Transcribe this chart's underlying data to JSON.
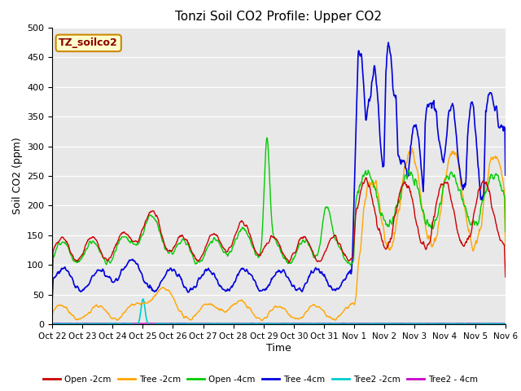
{
  "title": "Tonzi Soil CO2 Profile: Upper CO2",
  "ylabel": "Soil CO2 (ppm)",
  "xlabel": "Time",
  "ylim": [
    0,
    500
  ],
  "watermark": "TZ_soilco2",
  "bg_color": "#e8e8e8",
  "series": {
    "open_2cm": {
      "color": "#cc0000",
      "label": "Open -2cm"
    },
    "tree_2cm": {
      "color": "#ffa500",
      "label": "Tree -2cm"
    },
    "open_4cm": {
      "color": "#00cc00",
      "label": "Open -4cm"
    },
    "tree_4cm": {
      "color": "#0000dd",
      "label": "Tree -4cm"
    },
    "tree2_2cm": {
      "color": "#00cccc",
      "label": "Tree2 -2cm"
    },
    "tree2_4cm": {
      "color": "#cc00cc",
      "label": "Tree2 - 4cm"
    }
  },
  "xtick_labels": [
    "Oct 22",
    "Oct 23",
    "Oct 24",
    "Oct 25",
    "Oct 26",
    "Oct 27",
    "Oct 28",
    "Oct 29",
    "Oct 30",
    "Oct 31",
    "Nov 1",
    "Nov 2",
    "Nov 3",
    "Nov 4",
    "Nov 5",
    "Nov 6"
  ],
  "n_ticks": 16,
  "legend_colors": {
    "Open -2cm": "#cc0000",
    "Tree -2cm": "#ffa500",
    "Open -4cm": "#00cc00",
    "Tree -4cm": "#0000dd",
    "Tree2 -2cm": "#00cccc",
    "Tree2 - 4cm": "#cc00cc"
  }
}
